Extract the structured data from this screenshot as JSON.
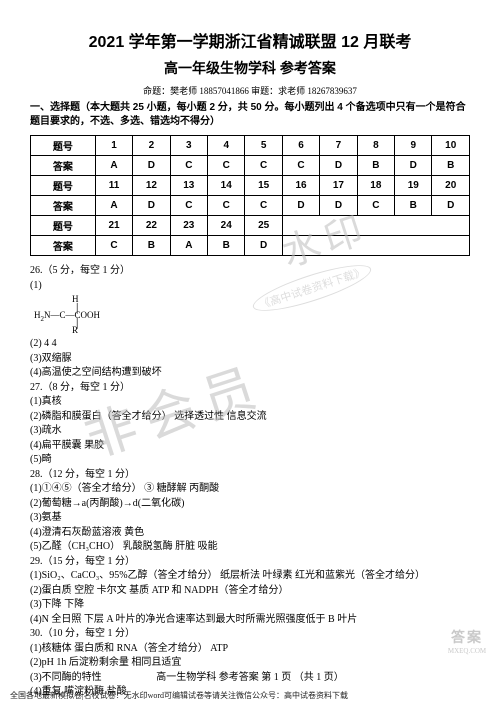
{
  "header": {
    "title1": "2021 学年第一学期浙江省精诚联盟 12 月联考",
    "title2": "高一年级生物学科  参考答案",
    "author_line": "命题：樊老师  18857041866          审题：求老师 18267839637",
    "instruction": "一、选择题（本大题共 25 小题，每小题 2 分，共 50 分。每小题列出 4 个备选项中只有一个是符合题目要求的，不选、多选、错选均不得分）"
  },
  "answer_table": {
    "label_q": "题号",
    "label_a": "答案",
    "rows": [
      {
        "nums": [
          "1",
          "2",
          "3",
          "4",
          "5",
          "6",
          "7",
          "8",
          "9",
          "10"
        ],
        "ans": [
          "A",
          "D",
          "C",
          "C",
          "C",
          "C",
          "D",
          "B",
          "D",
          "B"
        ]
      },
      {
        "nums": [
          "11",
          "12",
          "13",
          "14",
          "15",
          "16",
          "17",
          "18",
          "19",
          "20"
        ],
        "ans": [
          "A",
          "D",
          "C",
          "C",
          "C",
          "D",
          "D",
          "C",
          "B",
          "D"
        ]
      },
      {
        "nums": [
          "21",
          "22",
          "23",
          "24",
          "25"
        ],
        "ans": [
          "C",
          "B",
          "A",
          "B",
          "D"
        ]
      }
    ]
  },
  "body": {
    "q26_head": "26.（5 分，每空 1 分）",
    "q26_1_label": "(1)",
    "q26_2": "(2) 4    4",
    "q26_3": "(3)双缩脲",
    "q26_4": "(4)高温使之空间结构遭到破坏",
    "q27_head": "27.（8 分，每空 1 分）",
    "q27_1": "(1)真核",
    "q27_2": "(2)磷脂和膜蛋白（答全才给分）   选择透过性    信息交流",
    "q27_3": "(3)疏水",
    "q27_4": "(4)扁平膜囊    果胶",
    "q27_5": "(5)畸",
    "q28_head": "28.（12 分，每空 1 分）",
    "q28_1": "(1)①④⑤（答全才给分）    ③    糖酵解    丙酮酸",
    "q28_2": "(2)葡萄糖→a(丙酮酸)→d(二氧化碳)",
    "q28_3": "(3)氨基",
    "q28_4": "(4)澄清石灰酚蓝溶液    黄色",
    "q28_5": "(5)乙醛（CH₃CHO）    乳酸脱氢酶    肝脏    吸能",
    "q29_head": "29.（15 分，每空 1 分）",
    "q29_1": "(1)SiO₂、CaCO₃、95%乙醇（答全才给分）    纸层析法    叶绿素    红光和蓝紫光（答全才给分）",
    "q29_2": "(2)蛋白质    空腔    卡尔文    基质    ATP 和 NADPH（答全才给分）",
    "q29_3": "(3)下降    下降",
    "q29_4": "(4)N    全日照    下层    A 叶片的净光合速率达到最大时所需光照强度低于 B 叶片",
    "q30_head": "30.（10 分，每空 1 分）",
    "q30_1": "(1)核糖体    蛋白质和 RNA（答全才给分）    ATP",
    "q30_2": "(2)pH    1h 后淀粉剩余量    相同且适宜",
    "q30_3": "(3)不同酶的特性",
    "q30_4": "(4)重复    嘴淀粉酶    盐酸"
  },
  "watermarks": {
    "w1": "非会员",
    "w2": "水印",
    "w3": "《高中试卷资料下载》"
  },
  "footer": "高一生物学科   参考答案   第 1 页 （共 1 页）",
  "bottom_note": "全国各地最新模拟卷|名校试卷！无水印word可编辑试卷等请关注微信公众号：高中试卷资料下载",
  "corner": {
    "big": "答案",
    "sub": "MXEQ.COM"
  }
}
